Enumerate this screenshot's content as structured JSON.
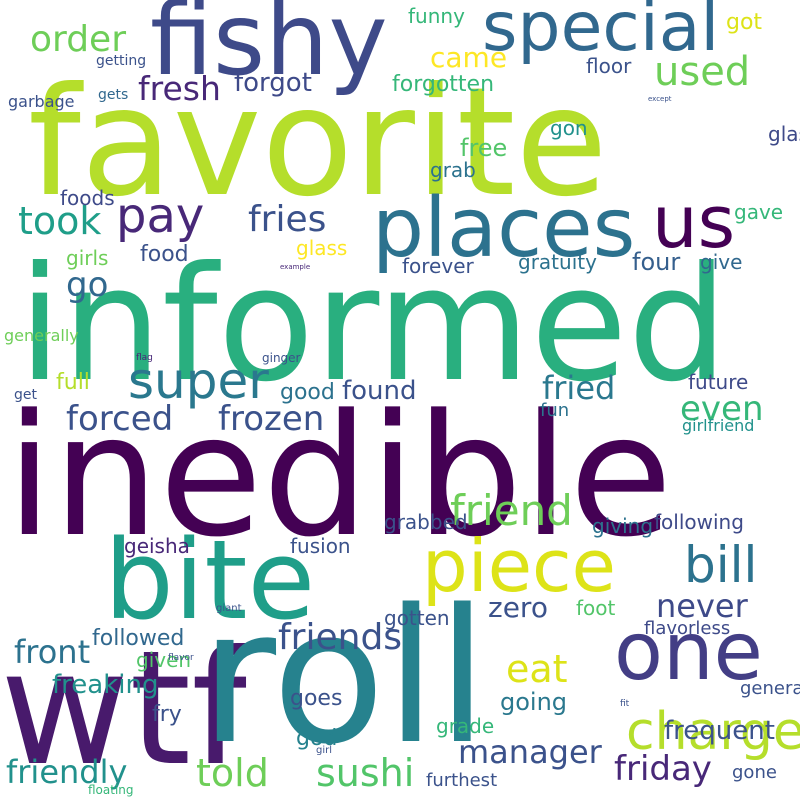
{
  "palette": {
    "dark_purple": "#440154",
    "indigo": "#3b528b",
    "blue": "#31688e",
    "teal": "#21918c",
    "green": "#35b779",
    "light_green": "#6ece58",
    "lime": "#b5de2b",
    "yellow": "#fde725"
  },
  "words": {
    "favorite": "favorite",
    "informed": "informed",
    "inedible": "inedible",
    "roll": "roll",
    "wtf": "wtf",
    "bite": "bite",
    "fishy": "fishy",
    "places": "places",
    "special": "special",
    "piece": "piece",
    "one": "one",
    "us": "us",
    "super": "super",
    "charge": "charge",
    "friend": "friend",
    "pay": "pay",
    "took": "took",
    "used": "used",
    "fresh": "fresh",
    "order": "order",
    "fries": "fries",
    "bill": "bill",
    "friends": "friends",
    "never": "never",
    "manager": "manager",
    "told": "told",
    "sushi": "sushi",
    "friendly": "friendly",
    "friday": "friday",
    "eat": "eat",
    "frozen": "frozen",
    "forced": "forced",
    "fried": "fried",
    "even": "even",
    "zero": "zero",
    "frequent": "frequent",
    "came": "came",
    "forgot": "forgot",
    "go": "go",
    "front": "front",
    "freaking": "freaking",
    "found": "found",
    "full": "full",
    "four": "four",
    "good": "good",
    "goes": "goes",
    "going": "going",
    "god": "god",
    "fry": "fry",
    "given": "given",
    "followed": "followed",
    "fusion": "fusion",
    "geisha": "geisha",
    "got": "got",
    "funny": "funny",
    "floor": "floor",
    "forgotten": "forgotten",
    "glasses": "glasses",
    "gon": "gon",
    "free": "free",
    "grab": "grab",
    "foods": "foods",
    "gave": "gave",
    "glass": "glass",
    "gratuity": "gratuity",
    "give": "give",
    "forever": "forever",
    "food": "food",
    "girls": "girls",
    "generally": "generally",
    "getting": "getting",
    "gets": "gets",
    "garbage": "garbage",
    "future": "future",
    "fun": "fun",
    "girlfriend": "girlfriend",
    "following": "following",
    "giving": "giving",
    "grabbed": "grabbed",
    "gotten": "gotten",
    "foot": "foot",
    "flavorless": "flavorless",
    "general": "general",
    "grade": "grade",
    "gone": "gone",
    "furthest": "furthest",
    "floating": "floating",
    "get": "get",
    "ginger": "ginger",
    "flag": "flag",
    "example": "example",
    "except": "except",
    "girl": "girl",
    "flavor": "flavor",
    "giant": "giant",
    "fit": "fit"
  }
}
